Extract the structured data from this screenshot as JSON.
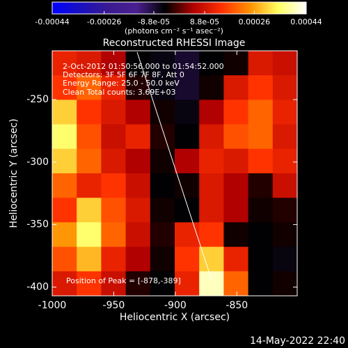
{
  "chart_data": {
    "type": "heatmap",
    "title": "Reconstructed RHESSI Image",
    "colorbar_label": "(photons cm⁻² s⁻¹ asec⁻²)",
    "clim": [
      -0.00044,
      0.00044
    ],
    "cticks": [
      -0.00044,
      -0.00026,
      {
        "value": -8.8e-05,
        "label": "-8.8e-05"
      },
      {
        "value": 8.8e-05,
        "label": "8.8e-05"
      },
      0.00026,
      0.00044
    ],
    "colorscale": [
      "#0000ff",
      "#1a10c0",
      "#3a1a90",
      "#4a2090",
      "#000000",
      "#b00000",
      "#ff3000",
      "#ff9000",
      "#ffff60",
      "#ffffff"
    ],
    "x_label": "Heliocentric X (arcsec)",
    "y_label": "Heliocentric Y (arcsec)",
    "xlim": [
      -1000,
      -801
    ],
    "ylim": [
      -407,
      -211
    ],
    "xticks": [
      -1000,
      -950,
      -900,
      -850
    ],
    "yticks": [
      -250,
      -300,
      -350,
      -400
    ],
    "annotations": [
      "2-Oct-2012 01:50:56.000 to 01:54:52.000",
      "Detectors: 3F 5F 6F 7F 8F, Att 0",
      "Energy Range: 25.0 - 50.0 keV",
      "Clean    Total counts: 3.69E+03"
    ],
    "peak_label": "Position of Peak = [-878,-389]",
    "timestamp": "14-May-2022 22:40",
    "z": [
      [
        0.00012,
        0.0001,
        5e-05,
        -5e-05,
        -6e-05,
        -8e-05,
        -5e-05,
        -4e-05,
        0.0001,
        8e-05
      ],
      [
        0.00015,
        0.0002,
        0.00012,
        -3e-05,
        -6e-05,
        -8e-05,
        -4e-05,
        0.0001,
        0.00015,
        0.0001
      ],
      [
        0.0003,
        0.00015,
        0.0001,
        5e-05,
        -4e-05,
        -6e-05,
        5e-05,
        0.00015,
        0.0002,
        0.00012
      ],
      [
        0.00035,
        0.00018,
        8e-05,
        0.00012,
        -3e-05,
        -5e-05,
        0.0001,
        0.00018,
        0.0002,
        0.0001
      ],
      [
        0.0003,
        0.0002,
        0.0001,
        5e-05,
        -4e-05,
        5e-05,
        0.00012,
        0.0001,
        0.00015,
        0.00012
      ],
      [
        0.0002,
        0.00012,
        0.00015,
        8e-05,
        -5e-05,
        -4e-05,
        0.0001,
        5e-05,
        -3e-05,
        8e-05
      ],
      [
        0.00015,
        0.0003,
        0.00018,
        0.0001,
        -4e-05,
        -5e-05,
        0.0001,
        5e-05,
        -4e-05,
        -3e-05
      ],
      [
        0.00025,
        0.00035,
        0.0002,
        8e-05,
        -3e-05,
        0.00012,
        0.00015,
        -4e-05,
        -5e-05,
        -4e-05
      ],
      [
        0.00018,
        0.00028,
        0.00012,
        5e-05,
        -4e-05,
        0.00015,
        0.0003,
        0.00012,
        -5e-05,
        -6e-05
      ],
      [
        0.0001,
        0.00015,
        8e-05,
        -3e-05,
        -5e-05,
        0.00012,
        0.0004,
        0.0002,
        -5e-05,
        -4e-05
      ]
    ]
  }
}
